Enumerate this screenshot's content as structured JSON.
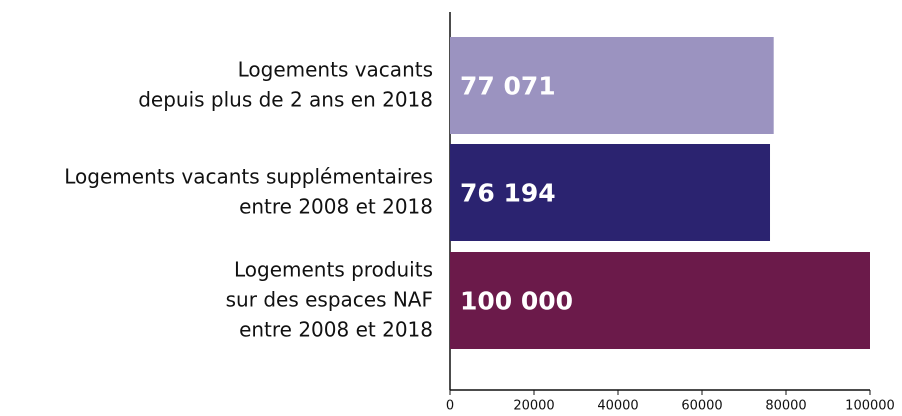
{
  "chart_data": {
    "type": "barh",
    "categories": [
      "Logements vacants\ndepuis plus de 2 ans en 2018",
      "Logements vacants supplémentaires\nentre 2008 et 2018",
      "Logements produits\nsur des espaces NAF\nentre 2008 et 2018"
    ],
    "values": [
      77071,
      76194,
      100000
    ],
    "value_labels": [
      "77 071",
      "76 194",
      "100 000"
    ],
    "colors": [
      "#9b93c0",
      "#2b2370",
      "#6b1a4a"
    ],
    "xlim": [
      0,
      100000
    ],
    "xticks": [
      0,
      20000,
      40000,
      60000,
      80000,
      100000
    ]
  }
}
